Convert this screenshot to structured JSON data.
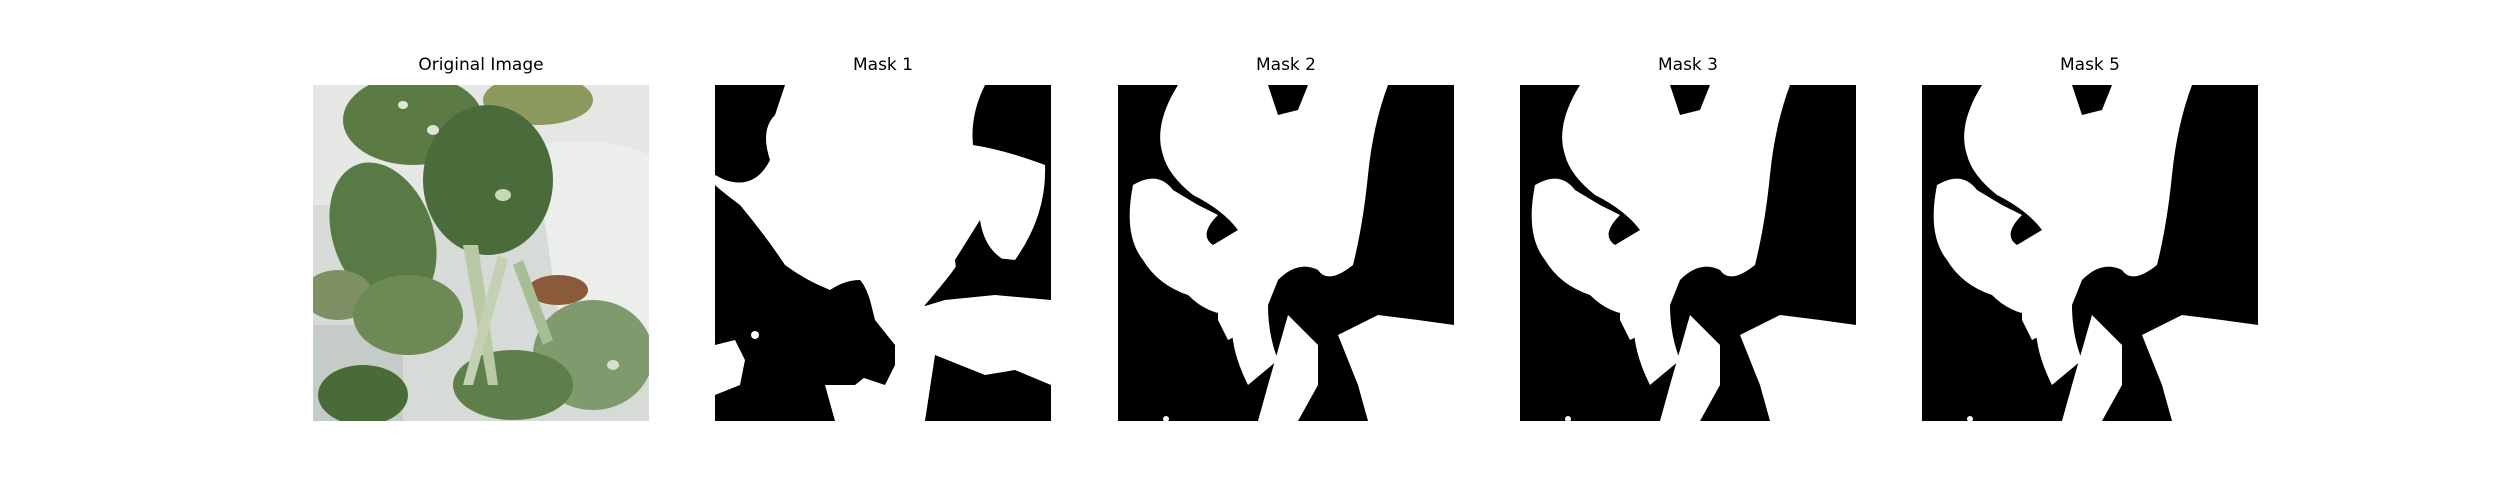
{
  "panels": [
    {
      "title": "Original Image",
      "kind": "photo"
    },
    {
      "title": "Mask 1",
      "kind": "mask"
    },
    {
      "title": "Mask 2",
      "kind": "mask"
    },
    {
      "title": "Mask 3",
      "kind": "mask"
    },
    {
      "title": "Mask 5",
      "kind": "mask"
    }
  ],
  "colors": {
    "mask_background": "#000000",
    "mask_foreground": "#ffffff",
    "leaf_dark": "#3d5a32",
    "leaf_light": "#9fb58e",
    "background_wall": "#d9ddda"
  }
}
